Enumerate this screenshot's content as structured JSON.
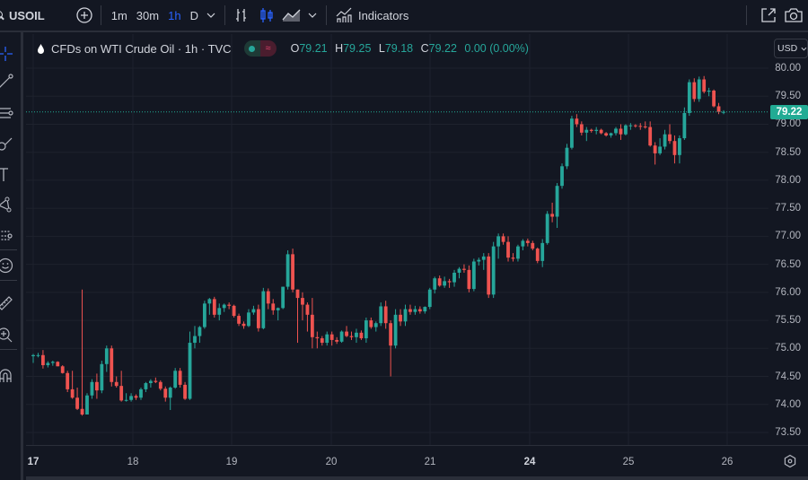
{
  "toolbar": {
    "symbol": "USOIL",
    "add_symbol": "add-compare",
    "timeframes": [
      {
        "label": "1m",
        "active": false
      },
      {
        "label": "30m",
        "active": false
      },
      {
        "label": "1h",
        "active": true
      },
      {
        "label": "D",
        "active": false
      }
    ],
    "chart_types": [
      "bar-chart-icon",
      "candles-icon",
      "area-chart-icon"
    ],
    "indicators_label": "Indicators",
    "right_icons": [
      "fullscreen-icon",
      "camera-icon"
    ]
  },
  "left_tools": [
    {
      "name": "crosshair-icon"
    },
    {
      "name": "trend-line-icon"
    },
    {
      "name": "fib-retracement-icon"
    },
    {
      "name": "brush-icon"
    },
    {
      "name": "text-icon"
    },
    {
      "name": "pattern-icon"
    },
    {
      "name": "prediction-icon"
    },
    {
      "name": "emoji-icon"
    },
    {
      "name": "ruler-icon"
    },
    {
      "name": "zoom-in-icon"
    },
    {
      "name": "magnet-icon"
    }
  ],
  "legend": {
    "title": "CFDs on WTI Crude Oil · 1h · TVC",
    "open_label": "O",
    "open": "79.21",
    "high_label": "H",
    "high": "79.25",
    "low_label": "L",
    "low": "79.18",
    "close_label": "C",
    "close": "79.22",
    "change": "0.00 (0.00%)"
  },
  "price_axis": {
    "currency": "USD",
    "last_price": "79.22",
    "ticks": [
      "80.00",
      "79.50",
      "79.00",
      "78.50",
      "78.00",
      "77.50",
      "77.00",
      "76.50",
      "76.00",
      "75.50",
      "75.00",
      "74.50",
      "74.00",
      "73.50"
    ]
  },
  "time_axis": {
    "labels": [
      "17",
      "18",
      "19",
      "20",
      "21",
      "24",
      "25",
      "26"
    ]
  },
  "colors": {
    "background": "#131722",
    "grid": "#1e222d",
    "up": "#26a69a",
    "down": "#ef5350",
    "last_price": "#22ab94",
    "accent": "#2962ff"
  },
  "chart_data": {
    "type": "candlestick",
    "title": "CFDs on WTI Crude Oil · 1h · TVC",
    "symbol": "USOIL",
    "interval": "1h",
    "ylim": [
      73.3,
      80.2
    ],
    "yticks": [
      73.5,
      74.0,
      74.5,
      75.0,
      75.5,
      76.0,
      76.5,
      77.0,
      77.5,
      78.0,
      78.5,
      79.0,
      79.5,
      80.0
    ],
    "x_tick_labels": [
      "17",
      "18",
      "19",
      "20",
      "21",
      "24",
      "25",
      "26"
    ],
    "last_price": 79.22,
    "candles": [
      {
        "o": 74.86,
        "h": 74.9,
        "l": 74.74,
        "c": 74.88
      },
      {
        "o": 74.88,
        "h": 74.92,
        "l": 74.84,
        "c": 74.88
      },
      {
        "o": 74.88,
        "h": 74.97,
        "l": 74.64,
        "c": 74.7
      },
      {
        "o": 74.7,
        "h": 74.77,
        "l": 74.66,
        "c": 74.74
      },
      {
        "o": 74.74,
        "h": 74.78,
        "l": 74.69,
        "c": 74.76
      },
      {
        "o": 74.76,
        "h": 74.77,
        "l": 74.68,
        "c": 74.68
      },
      {
        "o": 74.68,
        "h": 74.7,
        "l": 74.55,
        "c": 74.56
      },
      {
        "o": 74.56,
        "h": 74.6,
        "l": 74.22,
        "c": 74.27
      },
      {
        "o": 74.27,
        "h": 74.6,
        "l": 74.1,
        "c": 74.12
      },
      {
        "o": 74.12,
        "h": 74.3,
        "l": 73.9,
        "c": 73.92
      },
      {
        "o": 73.92,
        "h": 76.05,
        "l": 73.8,
        "c": 73.82
      },
      {
        "o": 73.82,
        "h": 74.2,
        "l": 73.84,
        "c": 74.16
      },
      {
        "o": 74.16,
        "h": 74.45,
        "l": 74.1,
        "c": 74.4
      },
      {
        "o": 74.4,
        "h": 74.55,
        "l": 74.1,
        "c": 74.25
      },
      {
        "o": 74.25,
        "h": 74.78,
        "l": 74.2,
        "c": 74.72
      },
      {
        "o": 74.72,
        "h": 75.05,
        "l": 74.58,
        "c": 75.0
      },
      {
        "o": 75.0,
        "h": 75.05,
        "l": 74.32,
        "c": 74.4
      },
      {
        "o": 74.4,
        "h": 74.5,
        "l": 74.3,
        "c": 74.33
      },
      {
        "o": 74.33,
        "h": 74.6,
        "l": 74.05,
        "c": 74.07
      },
      {
        "o": 74.07,
        "h": 74.2,
        "l": 74.05,
        "c": 74.08
      },
      {
        "o": 74.08,
        "h": 74.2,
        "l": 74.05,
        "c": 74.15
      },
      {
        "o": 74.15,
        "h": 74.18,
        "l": 74.08,
        "c": 74.12
      },
      {
        "o": 74.12,
        "h": 74.3,
        "l": 74.08,
        "c": 74.27
      },
      {
        "o": 74.27,
        "h": 74.4,
        "l": 74.22,
        "c": 74.38
      },
      {
        "o": 74.38,
        "h": 74.45,
        "l": 74.3,
        "c": 74.42
      },
      {
        "o": 74.42,
        "h": 74.48,
        "l": 74.38,
        "c": 74.4
      },
      {
        "o": 74.4,
        "h": 74.43,
        "l": 74.25,
        "c": 74.28
      },
      {
        "o": 74.28,
        "h": 74.32,
        "l": 74.05,
        "c": 74.12
      },
      {
        "o": 74.12,
        "h": 74.32,
        "l": 73.9,
        "c": 74.3
      },
      {
        "o": 74.3,
        "h": 74.65,
        "l": 74.28,
        "c": 74.6
      },
      {
        "o": 74.6,
        "h": 74.65,
        "l": 74.3,
        "c": 74.35
      },
      {
        "o": 74.35,
        "h": 74.4,
        "l": 74.08,
        "c": 74.1
      },
      {
        "o": 74.1,
        "h": 75.3,
        "l": 74.08,
        "c": 75.1
      },
      {
        "o": 75.1,
        "h": 75.4,
        "l": 75.0,
        "c": 75.22
      },
      {
        "o": 75.22,
        "h": 75.4,
        "l": 75.1,
        "c": 75.38
      },
      {
        "o": 75.38,
        "h": 75.85,
        "l": 75.35,
        "c": 75.8
      },
      {
        "o": 75.8,
        "h": 75.9,
        "l": 75.6,
        "c": 75.88
      },
      {
        "o": 75.88,
        "h": 75.92,
        "l": 75.55,
        "c": 75.6
      },
      {
        "o": 75.6,
        "h": 75.8,
        "l": 75.5,
        "c": 75.72
      },
      {
        "o": 75.72,
        "h": 75.8,
        "l": 75.65,
        "c": 75.78
      },
      {
        "o": 75.78,
        "h": 75.82,
        "l": 75.7,
        "c": 75.76
      },
      {
        "o": 75.76,
        "h": 75.78,
        "l": 75.55,
        "c": 75.58
      },
      {
        "o": 75.58,
        "h": 75.62,
        "l": 75.4,
        "c": 75.44
      },
      {
        "o": 75.44,
        "h": 75.48,
        "l": 75.35,
        "c": 75.4
      },
      {
        "o": 75.4,
        "h": 75.7,
        "l": 75.38,
        "c": 75.64
      },
      {
        "o": 75.64,
        "h": 75.76,
        "l": 75.6,
        "c": 75.7
      },
      {
        "o": 75.7,
        "h": 75.78,
        "l": 75.3,
        "c": 75.36
      },
      {
        "o": 75.36,
        "h": 76.08,
        "l": 75.34,
        "c": 76.02
      },
      {
        "o": 76.02,
        "h": 76.07,
        "l": 75.7,
        "c": 75.8
      },
      {
        "o": 75.8,
        "h": 75.88,
        "l": 75.6,
        "c": 75.68
      },
      {
        "o": 75.68,
        "h": 75.73,
        "l": 75.5,
        "c": 75.72
      },
      {
        "o": 75.72,
        "h": 76.1,
        "l": 75.7,
        "c": 76.1
      },
      {
        "o": 76.1,
        "h": 76.75,
        "l": 76.05,
        "c": 76.68
      },
      {
        "o": 76.68,
        "h": 76.78,
        "l": 76.0,
        "c": 76.05
      },
      {
        "o": 76.05,
        "h": 76.05,
        "l": 75.1,
        "c": 75.9
      },
      {
        "o": 75.9,
        "h": 76.0,
        "l": 75.5,
        "c": 75.78
      },
      {
        "o": 75.78,
        "h": 75.82,
        "l": 75.3,
        "c": 75.6
      },
      {
        "o": 75.6,
        "h": 75.9,
        "l": 75.0,
        "c": 75.2
      },
      {
        "o": 75.2,
        "h": 75.3,
        "l": 75.0,
        "c": 75.18
      },
      {
        "o": 75.18,
        "h": 75.22,
        "l": 75.05,
        "c": 75.1
      },
      {
        "o": 75.1,
        "h": 75.3,
        "l": 75.05,
        "c": 75.25
      },
      {
        "o": 75.25,
        "h": 75.3,
        "l": 75.05,
        "c": 75.15
      },
      {
        "o": 75.15,
        "h": 75.2,
        "l": 75.08,
        "c": 75.12
      },
      {
        "o": 75.12,
        "h": 75.32,
        "l": 75.1,
        "c": 75.3
      },
      {
        "o": 75.3,
        "h": 75.4,
        "l": 75.2,
        "c": 75.22
      },
      {
        "o": 75.22,
        "h": 75.3,
        "l": 75.15,
        "c": 75.2
      },
      {
        "o": 75.2,
        "h": 75.35,
        "l": 75.1,
        "c": 75.28
      },
      {
        "o": 75.28,
        "h": 75.32,
        "l": 75.15,
        "c": 75.18
      },
      {
        "o": 75.18,
        "h": 75.55,
        "l": 75.1,
        "c": 75.5
      },
      {
        "o": 75.5,
        "h": 75.55,
        "l": 75.35,
        "c": 75.38
      },
      {
        "o": 75.38,
        "h": 75.48,
        "l": 75.3,
        "c": 75.45
      },
      {
        "o": 75.45,
        "h": 75.82,
        "l": 75.4,
        "c": 75.75
      },
      {
        "o": 75.75,
        "h": 75.85,
        "l": 75.35,
        "c": 75.45
      },
      {
        "o": 75.45,
        "h": 75.5,
        "l": 74.5,
        "c": 75.05
      },
      {
        "o": 75.05,
        "h": 75.7,
        "l": 75.0,
        "c": 75.6
      },
      {
        "o": 75.6,
        "h": 75.7,
        "l": 75.4,
        "c": 75.48
      },
      {
        "o": 75.48,
        "h": 75.78,
        "l": 75.4,
        "c": 75.7
      },
      {
        "o": 75.7,
        "h": 75.78,
        "l": 75.6,
        "c": 75.65
      },
      {
        "o": 75.65,
        "h": 75.76,
        "l": 75.6,
        "c": 75.7
      },
      {
        "o": 75.7,
        "h": 75.75,
        "l": 75.62,
        "c": 75.66
      },
      {
        "o": 75.66,
        "h": 75.75,
        "l": 75.62,
        "c": 75.74
      },
      {
        "o": 75.74,
        "h": 76.08,
        "l": 75.7,
        "c": 76.05
      },
      {
        "o": 76.05,
        "h": 76.28,
        "l": 75.98,
        "c": 76.25
      },
      {
        "o": 76.25,
        "h": 76.3,
        "l": 76.1,
        "c": 76.12
      },
      {
        "o": 76.12,
        "h": 76.28,
        "l": 76.08,
        "c": 76.2
      },
      {
        "o": 76.2,
        "h": 76.24,
        "l": 76.08,
        "c": 76.18
      },
      {
        "o": 76.18,
        "h": 76.4,
        "l": 76.1,
        "c": 76.35
      },
      {
        "o": 76.35,
        "h": 76.45,
        "l": 76.25,
        "c": 76.42
      },
      {
        "o": 76.42,
        "h": 76.5,
        "l": 76.35,
        "c": 76.4
      },
      {
        "o": 76.4,
        "h": 76.48,
        "l": 76.0,
        "c": 76.06
      },
      {
        "o": 76.06,
        "h": 76.6,
        "l": 76.02,
        "c": 76.55
      },
      {
        "o": 76.55,
        "h": 76.62,
        "l": 76.48,
        "c": 76.58
      },
      {
        "o": 76.58,
        "h": 76.7,
        "l": 76.4,
        "c": 76.64
      },
      {
        "o": 76.64,
        "h": 76.7,
        "l": 75.9,
        "c": 75.96
      },
      {
        "o": 75.96,
        "h": 76.9,
        "l": 75.9,
        "c": 76.82
      },
      {
        "o": 76.82,
        "h": 77.05,
        "l": 76.6,
        "c": 77.0
      },
      {
        "o": 77.0,
        "h": 77.05,
        "l": 76.85,
        "c": 76.9
      },
      {
        "o": 76.9,
        "h": 77.0,
        "l": 76.55,
        "c": 76.62
      },
      {
        "o": 76.62,
        "h": 76.7,
        "l": 76.55,
        "c": 76.6
      },
      {
        "o": 76.6,
        "h": 76.85,
        "l": 76.55,
        "c": 76.82
      },
      {
        "o": 76.82,
        "h": 76.95,
        "l": 76.75,
        "c": 76.92
      },
      {
        "o": 76.92,
        "h": 76.96,
        "l": 76.82,
        "c": 76.88
      },
      {
        "o": 76.88,
        "h": 76.92,
        "l": 76.75,
        "c": 76.78
      },
      {
        "o": 76.78,
        "h": 76.8,
        "l": 76.52,
        "c": 76.56
      },
      {
        "o": 76.56,
        "h": 76.95,
        "l": 76.45,
        "c": 76.88
      },
      {
        "o": 76.88,
        "h": 77.45,
        "l": 76.85,
        "c": 77.4
      },
      {
        "o": 77.4,
        "h": 77.6,
        "l": 77.25,
        "c": 77.35
      },
      {
        "o": 77.35,
        "h": 77.95,
        "l": 77.15,
        "c": 77.9
      },
      {
        "o": 77.9,
        "h": 78.3,
        "l": 77.85,
        "c": 78.25
      },
      {
        "o": 78.25,
        "h": 78.65,
        "l": 78.2,
        "c": 78.58
      },
      {
        "o": 78.58,
        "h": 79.15,
        "l": 78.55,
        "c": 79.1
      },
      {
        "o": 79.1,
        "h": 79.18,
        "l": 78.95,
        "c": 79.0
      },
      {
        "o": 79.0,
        "h": 79.05,
        "l": 78.8,
        "c": 78.85
      },
      {
        "o": 78.85,
        "h": 78.95,
        "l": 78.7,
        "c": 78.9
      },
      {
        "o": 78.9,
        "h": 78.92,
        "l": 78.85,
        "c": 78.88
      },
      {
        "o": 78.88,
        "h": 78.95,
        "l": 78.82,
        "c": 78.9
      },
      {
        "o": 78.9,
        "h": 78.92,
        "l": 78.82,
        "c": 78.84
      },
      {
        "o": 78.84,
        "h": 78.86,
        "l": 78.78,
        "c": 78.8
      },
      {
        "o": 78.8,
        "h": 78.85,
        "l": 78.76,
        "c": 78.84
      },
      {
        "o": 78.84,
        "h": 78.95,
        "l": 78.8,
        "c": 78.92
      },
      {
        "o": 78.92,
        "h": 79.0,
        "l": 78.72,
        "c": 78.82
      },
      {
        "o": 78.82,
        "h": 79.0,
        "l": 78.8,
        "c": 78.98
      },
      {
        "o": 78.98,
        "h": 79.02,
        "l": 78.9,
        "c": 78.98
      },
      {
        "o": 78.98,
        "h": 79.0,
        "l": 78.94,
        "c": 78.97
      },
      {
        "o": 78.97,
        "h": 79.02,
        "l": 78.9,
        "c": 78.96
      },
      {
        "o": 78.96,
        "h": 79.05,
        "l": 78.92,
        "c": 78.95
      },
      {
        "o": 78.95,
        "h": 79.05,
        "l": 78.6,
        "c": 78.62
      },
      {
        "o": 78.62,
        "h": 78.68,
        "l": 78.28,
        "c": 78.48
      },
      {
        "o": 78.48,
        "h": 78.75,
        "l": 78.45,
        "c": 78.6
      },
      {
        "o": 78.6,
        "h": 78.9,
        "l": 78.55,
        "c": 78.82
      },
      {
        "o": 78.82,
        "h": 79.0,
        "l": 78.65,
        "c": 78.7
      },
      {
        "o": 78.7,
        "h": 78.8,
        "l": 78.3,
        "c": 78.45
      },
      {
        "o": 78.45,
        "h": 78.8,
        "l": 78.3,
        "c": 78.75
      },
      {
        "o": 78.75,
        "h": 79.3,
        "l": 78.72,
        "c": 79.2
      },
      {
        "o": 79.2,
        "h": 79.8,
        "l": 79.15,
        "c": 79.75
      },
      {
        "o": 79.75,
        "h": 79.82,
        "l": 79.4,
        "c": 79.45
      },
      {
        "o": 79.45,
        "h": 79.85,
        "l": 79.4,
        "c": 79.8
      },
      {
        "o": 79.8,
        "h": 79.86,
        "l": 79.55,
        "c": 79.58
      },
      {
        "o": 79.58,
        "h": 79.65,
        "l": 79.5,
        "c": 79.6
      },
      {
        "o": 79.6,
        "h": 79.62,
        "l": 79.3,
        "c": 79.32
      },
      {
        "o": 79.32,
        "h": 79.38,
        "l": 79.18,
        "c": 79.22
      },
      {
        "o": 79.21,
        "h": 79.25,
        "l": 79.18,
        "c": 79.22
      }
    ]
  }
}
